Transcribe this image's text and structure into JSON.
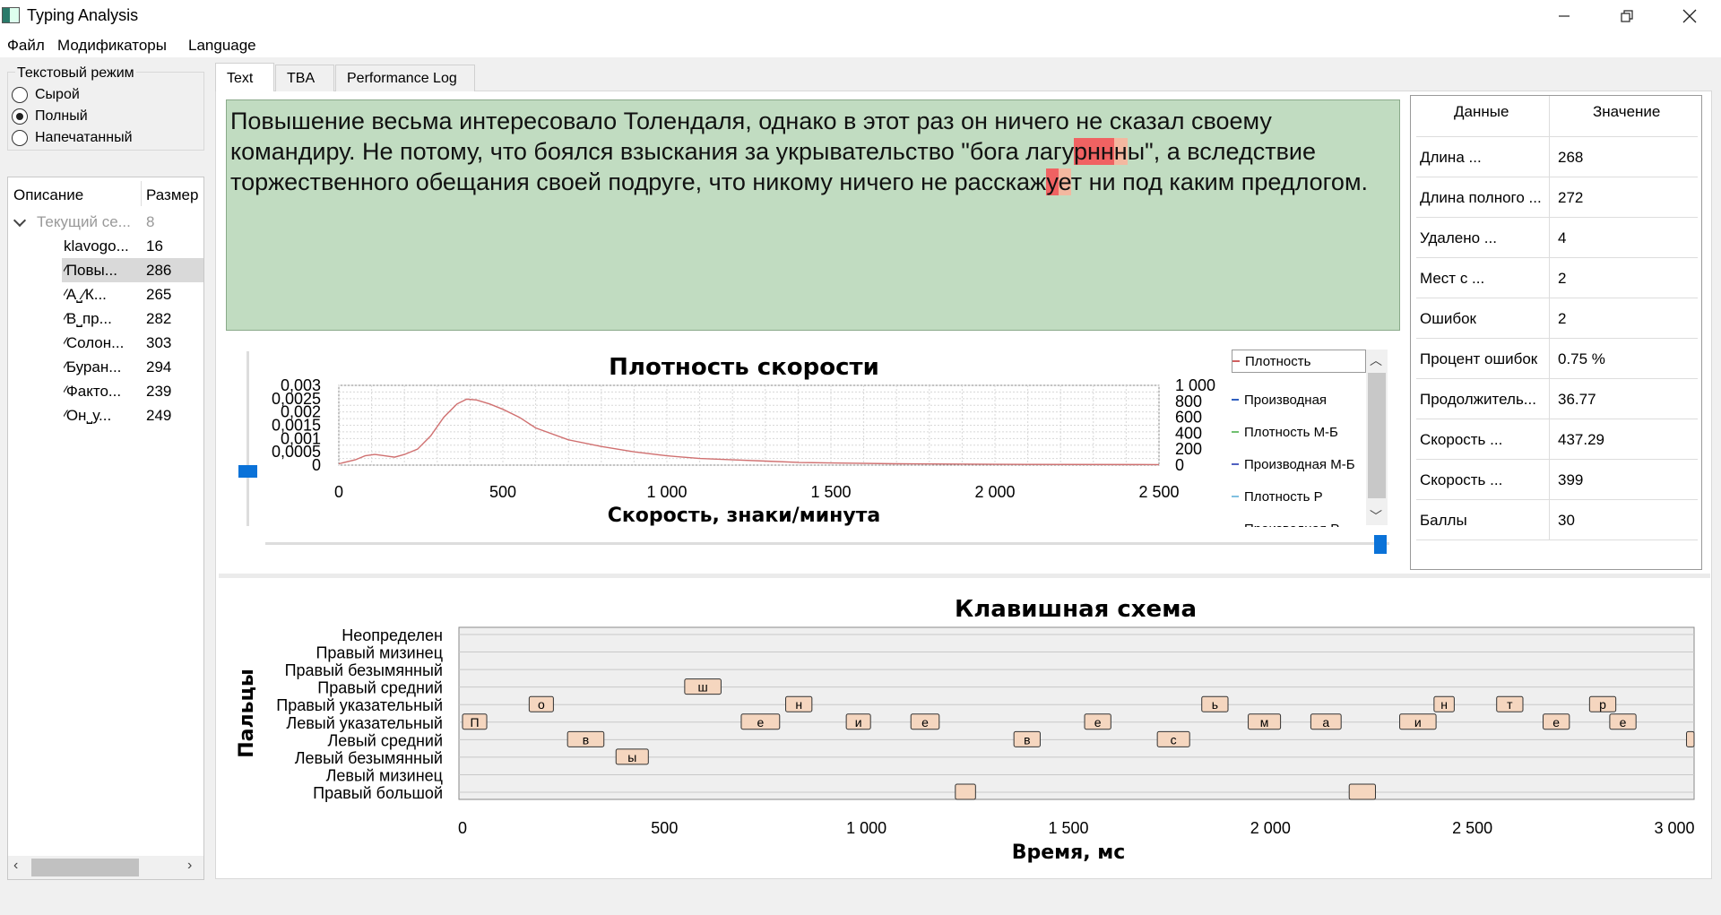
{
  "window": {
    "title": "Typing Analysis"
  },
  "menu": [
    "Файл",
    "Модификаторы",
    "Language"
  ],
  "mode_group": {
    "title": "Текстовый режим",
    "options": [
      {
        "label": "Сырой",
        "checked": false
      },
      {
        "label": "Полный",
        "checked": true
      },
      {
        "label": "Напечатанный",
        "checked": false
      }
    ]
  },
  "tree": {
    "headers": [
      "Описание",
      "Размер"
    ],
    "root": {
      "label": "Текущий се...",
      "size": "8"
    },
    "items": [
      {
        "label": "klavogo...",
        "size": "16"
      },
      {
        "label": "⁄Повы...",
        "size": "286",
        "selected": true
      },
      {
        "label": "⁄А⎵⁄К...",
        "size": "265"
      },
      {
        "label": "⁄В⎵пр...",
        "size": "282"
      },
      {
        "label": "⁄Солон...",
        "size": "303"
      },
      {
        "label": "⁄Буран...",
        "size": "294"
      },
      {
        "label": "⁄Факто...",
        "size": "239"
      },
      {
        "label": "⁄Он⎵у...",
        "size": "249"
      }
    ]
  },
  "tabs": [
    {
      "label": "Text",
      "active": true
    },
    {
      "label": "TBA",
      "active": false
    },
    {
      "label": "Performance Log",
      "active": false
    }
  ],
  "text": {
    "part1": "Повышение весьма интересовало Толендаля, однако в этот раз он ничего не сказал своему командиру. Не потому, что боялся взыскания за укрывательство \"бога лагу",
    "hl1": "рнн",
    "hl1b": "н",
    "part2": "ы\", а вследствие торжественного обещания своей подруге, что никому ничего не расскаж",
    "hl2": "у",
    "hl2b": "е",
    "part3": "т ни под каким предлогом."
  },
  "stats": {
    "headers": [
      "Данные",
      "Значение"
    ],
    "rows": [
      {
        "key": "Длина ...",
        "value": "268"
      },
      {
        "key": "Длина полного ...",
        "value": "272"
      },
      {
        "key": "Удалено ...",
        "value": "4"
      },
      {
        "key": "Мест с ...",
        "value": "2"
      },
      {
        "key": "Ошибок",
        "value": "2"
      },
      {
        "key": "Процент ошибок",
        "value": "0.75 %"
      },
      {
        "key": "Продолжитель...",
        "value": "36.77"
      },
      {
        "key": "Скорость ...",
        "value": "437.29"
      },
      {
        "key": "Скорость ...",
        "value": "399"
      },
      {
        "key": "Баллы",
        "value": "30"
      }
    ]
  },
  "legend": [
    {
      "name": "Плотность",
      "color": "#d06060"
    },
    {
      "name": "Производная",
      "color": "#3060c0"
    },
    {
      "name": "Плотность М-Б",
      "color": "#70c070"
    },
    {
      "name": "Производная М-Б",
      "color": "#5060c0"
    },
    {
      "name": "Плотность Р",
      "color": "#80c0e0"
    },
    {
      "name": "Производная Р",
      "color": "#3060c0"
    }
  ],
  "chart_data": [
    {
      "type": "line",
      "title": "Плотность скорости",
      "xlabel": "Скорость, знаки/минута",
      "xlim": [
        0,
        2500
      ],
      "x_ticks": [
        "0",
        "500",
        "1 000",
        "1 500",
        "2 000",
        "2 500"
      ],
      "y_ticks_left": [
        "0",
        "0,0005",
        "0,001",
        "0,0015",
        "0,002",
        "0,0025",
        "0,003"
      ],
      "y_ticks_right": [
        "0",
        "200",
        "400",
        "600",
        "800",
        "1 000"
      ],
      "ylim": [
        0,
        0.003
      ],
      "grid": true,
      "series": [
        {
          "name": "Плотность",
          "color": "#d07070",
          "x": [
            0,
            50,
            80,
            110,
            140,
            170,
            200,
            240,
            280,
            320,
            360,
            390,
            420,
            460,
            500,
            550,
            600,
            700,
            800,
            900,
            1000,
            1100,
            1200,
            1300,
            1400,
            1500,
            1700,
            2000,
            2500
          ],
          "y": [
            5e-05,
            0.0002,
            0.00035,
            0.0004,
            0.00035,
            0.0003,
            0.0004,
            0.0006,
            0.0011,
            0.0018,
            0.0023,
            0.00248,
            0.00245,
            0.0023,
            0.0021,
            0.0018,
            0.0014,
            0.00095,
            0.0007,
            0.0005,
            0.00035,
            0.00025,
            0.0002,
            0.00015,
            0.0001,
            8e-05,
            5e-05,
            3e-05,
            2e-05
          ]
        }
      ]
    },
    {
      "type": "scatter",
      "title": "Клавишная схема",
      "xlabel": "Время, мс",
      "ylabel": "Пальцы",
      "xlim": [
        0,
        3000
      ],
      "x_ticks": [
        "0",
        "500",
        "1 000",
        "1 500",
        "2 000",
        "2 500",
        "3 000"
      ],
      "categories": [
        "Правый большой",
        "Левый мизинец",
        "Левый безымянный",
        "Левый средний",
        "Левый указательный",
        "Правый указательный",
        "Правый средний",
        "Правый безымянный",
        "Правый мизинец",
        "Неопределен"
      ],
      "keys": [
        {
          "key": "П",
          "start": 0,
          "end": 60,
          "finger": "Левый указательный"
        },
        {
          "key": "о",
          "start": 165,
          "end": 225,
          "finger": "Правый указательный"
        },
        {
          "key": "в",
          "start": 260,
          "end": 350,
          "finger": "Левый средний"
        },
        {
          "key": "ы",
          "start": 380,
          "end": 460,
          "finger": "Левый безымянный"
        },
        {
          "key": "ш",
          "start": 550,
          "end": 640,
          "finger": "Правый средний"
        },
        {
          "key": "е",
          "start": 690,
          "end": 785,
          "finger": "Левый указательный"
        },
        {
          "key": "н",
          "start": 800,
          "end": 865,
          "finger": "Правый указательный"
        },
        {
          "key": "и",
          "start": 950,
          "end": 1010,
          "finger": "Левый указательный"
        },
        {
          "key": "е",
          "start": 1110,
          "end": 1180,
          "finger": "Левый указательный"
        },
        {
          "key": "",
          "start": 1220,
          "end": 1270,
          "finger": "Правый большой"
        },
        {
          "key": "в",
          "start": 1365,
          "end": 1430,
          "finger": "Левый средний"
        },
        {
          "key": "е",
          "start": 1540,
          "end": 1605,
          "finger": "Левый указательный"
        },
        {
          "key": "с",
          "start": 1720,
          "end": 1800,
          "finger": "Левый средний"
        },
        {
          "key": "ь",
          "start": 1830,
          "end": 1895,
          "finger": "Правый указательный"
        },
        {
          "key": "м",
          "start": 1945,
          "end": 2025,
          "finger": "Левый указательный"
        },
        {
          "key": "",
          "start": 2195,
          "end": 2260,
          "finger": "Правый большой"
        },
        {
          "key": "а",
          "start": 2100,
          "end": 2175,
          "finger": "Левый указательный"
        },
        {
          "key": "и",
          "start": 2320,
          "end": 2410,
          "finger": "Левый указательный"
        },
        {
          "key": "н",
          "start": 2405,
          "end": 2455,
          "finger": "Правый указательный"
        },
        {
          "key": "т",
          "start": 2560,
          "end": 2625,
          "finger": "Правый указательный"
        },
        {
          "key": "е",
          "start": 2675,
          "end": 2740,
          "finger": "Левый указательный"
        },
        {
          "key": "р",
          "start": 2790,
          "end": 2855,
          "finger": "Правый указательный"
        },
        {
          "key": "е",
          "start": 2840,
          "end": 2905,
          "finger": "Левый указательный"
        },
        {
          "key": "",
          "start": 3030,
          "end": 3080,
          "finger": "Левый средний"
        }
      ]
    }
  ]
}
